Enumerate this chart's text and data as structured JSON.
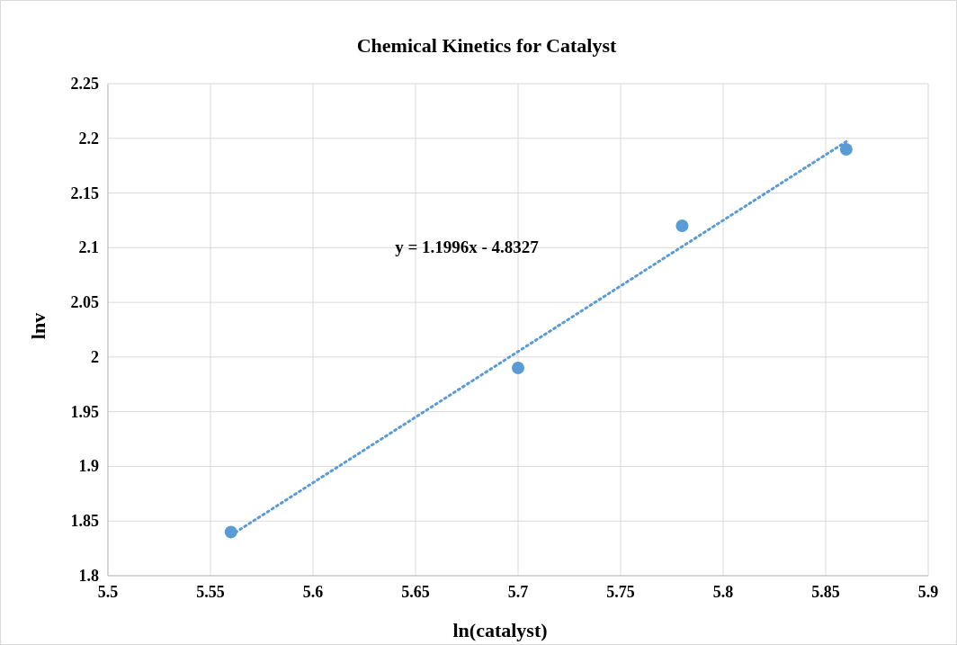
{
  "chart_data": {
    "type": "scatter",
    "title": "Chemical Kinetics for Catalyst",
    "xlabel": "ln(catalyst)",
    "ylabel": "lnv",
    "annotations": [
      "y = 1.1996x - 4.8327"
    ],
    "series": [
      {
        "color": "#5b9bd5",
        "x": [
          5.56,
          5.7,
          5.78,
          5.86
        ],
        "values": [
          1.84,
          1.99,
          2.12,
          2.19
        ],
        "marker": "circle"
      },
      {
        "type": "line",
        "color": "#5b9bd5",
        "x": [
          5.56,
          5.86
        ],
        "values": [
          1.837,
          2.197
        ],
        "line_style": "dotted",
        "marker": "none"
      }
    ],
    "xlim": [
      5.5,
      5.9
    ],
    "xticks": [
      5.5,
      5.55,
      5.6,
      5.65,
      5.7,
      5.75,
      5.8,
      5.85,
      5.9
    ],
    "ylim": [
      1.8,
      2.25
    ],
    "yticks": [
      1.8,
      1.85,
      1.9,
      1.95,
      2,
      2.05,
      2.1,
      2.15,
      2.2,
      2.25
    ],
    "grid": true
  }
}
